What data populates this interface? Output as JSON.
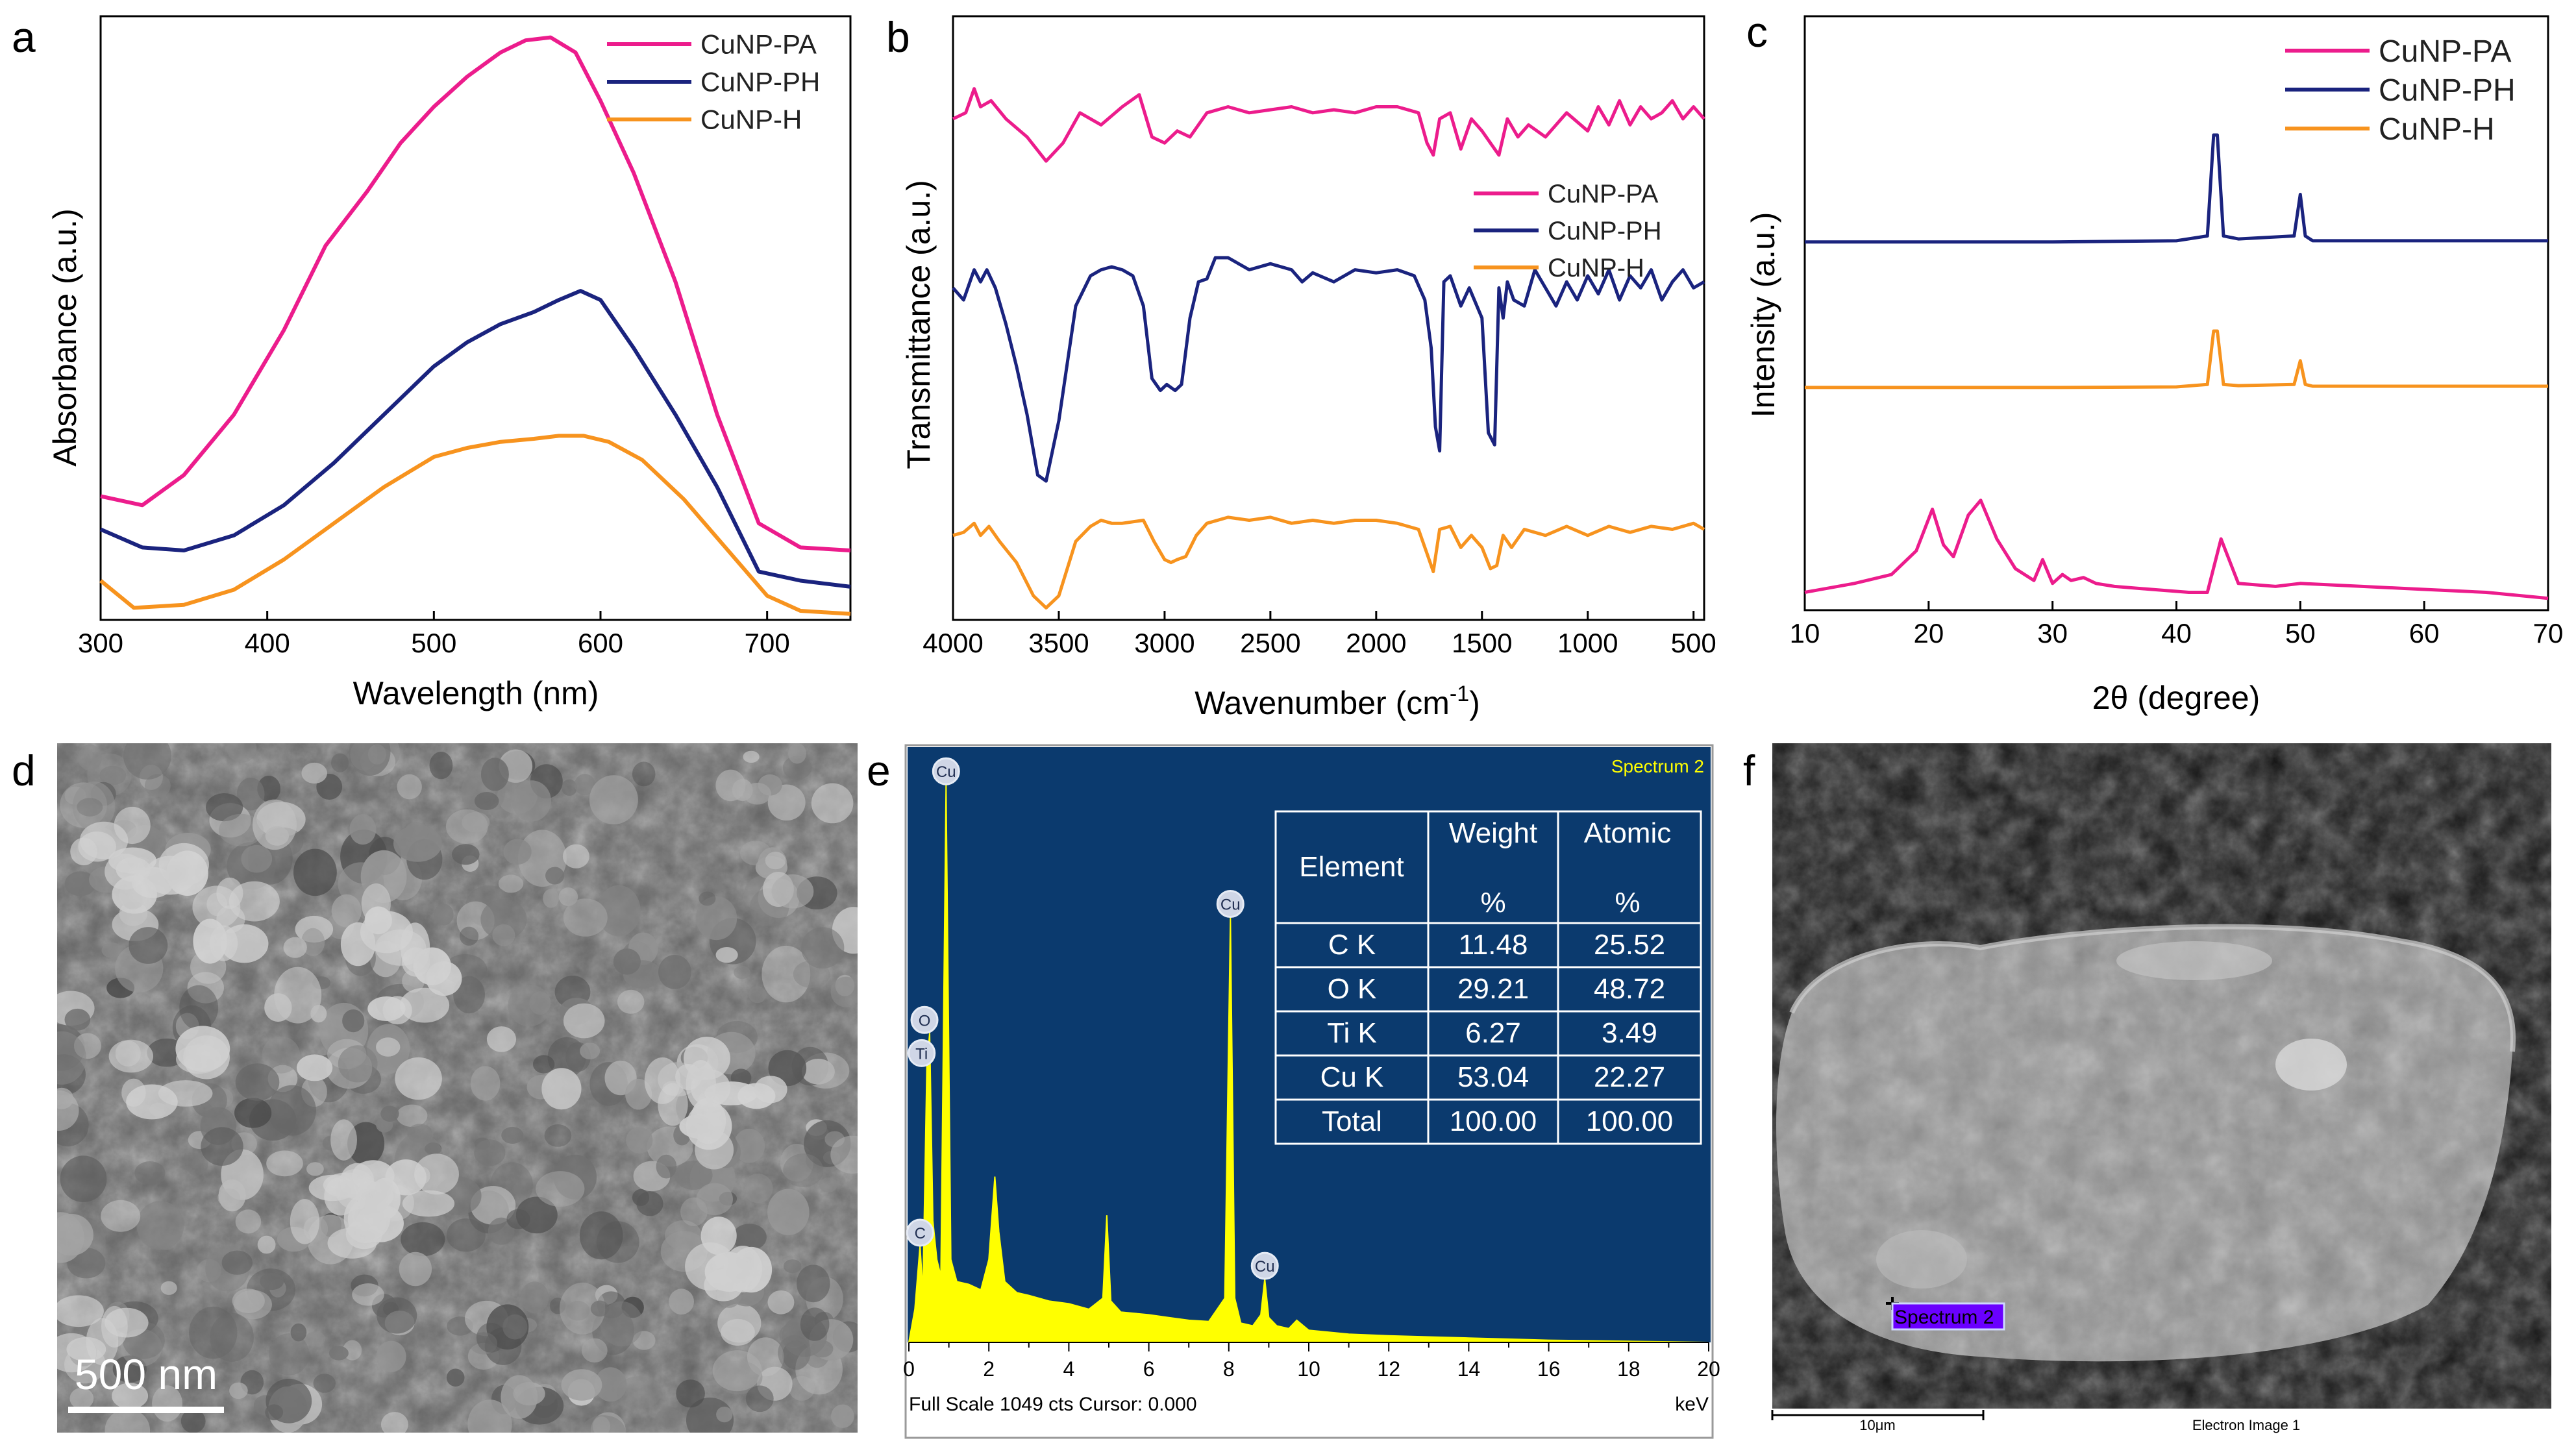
{
  "colors": {
    "pa": "#ec1c8c",
    "ph": "#1a237e",
    "h": "#f7931e",
    "eds_bg": "#0b3a6e",
    "eds_fill": "#ffff00",
    "axis": "#000000"
  },
  "chart_data": [
    {
      "panel": "a",
      "type": "line",
      "xlabel": "Wavelength (nm)",
      "ylabel": "Absorbance (a.u.)",
      "xlim": [
        300,
        750
      ],
      "ylim": [
        0,
        1.0
      ],
      "xticks": [
        "300",
        "400",
        "500",
        "600",
        "700"
      ],
      "xtick_values": [
        300,
        400,
        500,
        600,
        700
      ],
      "legend": [
        "CuNP-PA",
        "CuNP-PH",
        "CuNP-H"
      ],
      "series": [
        {
          "name": "CuNP-PA",
          "color": "pa",
          "x": [
            300,
            325,
            350,
            380,
            410,
            435,
            460,
            480,
            500,
            520,
            540,
            555,
            570,
            585,
            600,
            620,
            645,
            670,
            695,
            720,
            750
          ],
          "y": [
            0.205,
            0.19,
            0.24,
            0.34,
            0.48,
            0.62,
            0.71,
            0.79,
            0.85,
            0.9,
            0.94,
            0.96,
            0.965,
            0.94,
            0.86,
            0.74,
            0.56,
            0.34,
            0.16,
            0.12,
            0.115
          ]
        },
        {
          "name": "CuNP-PH",
          "color": "ph",
          "x": [
            300,
            325,
            350,
            380,
            410,
            440,
            470,
            500,
            520,
            540,
            560,
            575,
            588,
            600,
            620,
            645,
            670,
            695,
            720,
            750
          ],
          "y": [
            0.15,
            0.12,
            0.115,
            0.14,
            0.19,
            0.26,
            0.34,
            0.42,
            0.46,
            0.49,
            0.51,
            0.53,
            0.545,
            0.53,
            0.45,
            0.34,
            0.22,
            0.08,
            0.065,
            0.055
          ]
        },
        {
          "name": "CuNP-H",
          "color": "h",
          "x": [
            300,
            320,
            350,
            380,
            410,
            440,
            470,
            500,
            520,
            540,
            560,
            575,
            590,
            605,
            625,
            650,
            675,
            700,
            720,
            750
          ],
          "y": [
            0.065,
            0.02,
            0.025,
            0.05,
            0.1,
            0.16,
            0.22,
            0.27,
            0.285,
            0.295,
            0.3,
            0.305,
            0.305,
            0.295,
            0.265,
            0.2,
            0.12,
            0.04,
            0.015,
            0.01
          ]
        }
      ]
    },
    {
      "panel": "b",
      "type": "line",
      "xlabel": "Wavenumber (cm⁻¹)",
      "xlabel_main": "Wavenumber (cm",
      "xlabel_sup": "-1",
      "xlabel_end": ")",
      "ylabel": "Transmittance (a.u.)",
      "xlim": [
        4000,
        450
      ],
      "ylim": [
        0,
        1.0
      ],
      "xticks": [
        "4000",
        "3500",
        "3000",
        "2500",
        "2000",
        "1500",
        "1000",
        "500"
      ],
      "xtick_values": [
        4000,
        3500,
        3000,
        2500,
        2000,
        1500,
        1000,
        500
      ],
      "legend": [
        "CuNP-PA",
        "CuNP-PH",
        "CuNP-H"
      ],
      "series": [
        {
          "name": "CuNP-PA",
          "color": "pa",
          "x": [
            4000,
            3940,
            3900,
            3870,
            3820,
            3750,
            3650,
            3560,
            3480,
            3400,
            3300,
            3200,
            3120,
            3060,
            3000,
            2940,
            2880,
            2800,
            2700,
            2600,
            2500,
            2400,
            2300,
            2200,
            2100,
            2000,
            1900,
            1800,
            1760,
            1730,
            1700,
            1650,
            1600,
            1550,
            1500,
            1460,
            1420,
            1380,
            1330,
            1280,
            1200,
            1100,
            1000,
            950,
            900,
            850,
            800,
            750,
            700,
            650,
            600,
            550,
            500,
            450
          ],
          "y": [
            0.83,
            0.84,
            0.88,
            0.85,
            0.86,
            0.83,
            0.8,
            0.76,
            0.79,
            0.84,
            0.82,
            0.85,
            0.87,
            0.8,
            0.79,
            0.81,
            0.8,
            0.84,
            0.85,
            0.84,
            0.845,
            0.85,
            0.84,
            0.845,
            0.84,
            0.85,
            0.85,
            0.84,
            0.79,
            0.77,
            0.83,
            0.84,
            0.78,
            0.83,
            0.81,
            0.79,
            0.77,
            0.83,
            0.8,
            0.82,
            0.8,
            0.84,
            0.81,
            0.85,
            0.82,
            0.86,
            0.82,
            0.85,
            0.83,
            0.84,
            0.86,
            0.83,
            0.85,
            0.83
          ]
        },
        {
          "name": "CuNP-PH",
          "color": "ph",
          "x": [
            4000,
            3950,
            3900,
            3870,
            3840,
            3800,
            3750,
            3700,
            3650,
            3600,
            3560,
            3500,
            3420,
            3350,
            3300,
            3250,
            3200,
            3150,
            3100,
            3060,
            3020,
            2990,
            2950,
            2920,
            2880,
            2840,
            2800,
            2760,
            2700,
            2600,
            2500,
            2400,
            2350,
            2300,
            2200,
            2100,
            2000,
            1900,
            1820,
            1770,
            1740,
            1720,
            1700,
            1680,
            1650,
            1600,
            1560,
            1500,
            1470,
            1440,
            1420,
            1400,
            1380,
            1350,
            1300,
            1250,
            1200,
            1150,
            1100,
            1050,
            1000,
            950,
            900,
            850,
            800,
            750,
            700,
            650,
            600,
            550,
            500,
            450
          ],
          "y": [
            0.55,
            0.53,
            0.58,
            0.56,
            0.58,
            0.55,
            0.49,
            0.42,
            0.34,
            0.24,
            0.23,
            0.33,
            0.52,
            0.57,
            0.58,
            0.585,
            0.58,
            0.57,
            0.52,
            0.4,
            0.38,
            0.39,
            0.38,
            0.39,
            0.5,
            0.56,
            0.565,
            0.6,
            0.6,
            0.58,
            0.59,
            0.58,
            0.56,
            0.575,
            0.56,
            0.58,
            0.575,
            0.58,
            0.57,
            0.53,
            0.45,
            0.32,
            0.28,
            0.56,
            0.57,
            0.52,
            0.55,
            0.5,
            0.31,
            0.29,
            0.55,
            0.5,
            0.56,
            0.53,
            0.52,
            0.58,
            0.55,
            0.52,
            0.56,
            0.53,
            0.57,
            0.54,
            0.58,
            0.53,
            0.57,
            0.55,
            0.58,
            0.53,
            0.56,
            0.58,
            0.55,
            0.56
          ]
        },
        {
          "name": "CuNP-H",
          "color": "h",
          "x": [
            4000,
            3950,
            3900,
            3870,
            3830,
            3780,
            3700,
            3620,
            3560,
            3500,
            3420,
            3350,
            3300,
            3250,
            3200,
            3100,
            3050,
            3000,
            2970,
            2940,
            2900,
            2850,
            2800,
            2700,
            2600,
            2500,
            2400,
            2300,
            2200,
            2100,
            2000,
            1900,
            1800,
            1760,
            1730,
            1700,
            1650,
            1600,
            1550,
            1500,
            1460,
            1430,
            1400,
            1360,
            1300,
            1200,
            1100,
            1000,
            900,
            800,
            700,
            600,
            500,
            450
          ],
          "y": [
            0.14,
            0.145,
            0.16,
            0.14,
            0.155,
            0.13,
            0.095,
            0.04,
            0.02,
            0.04,
            0.13,
            0.155,
            0.165,
            0.16,
            0.16,
            0.165,
            0.13,
            0.1,
            0.095,
            0.1,
            0.105,
            0.14,
            0.16,
            0.17,
            0.165,
            0.17,
            0.16,
            0.165,
            0.16,
            0.165,
            0.165,
            0.16,
            0.15,
            0.11,
            0.08,
            0.15,
            0.155,
            0.12,
            0.14,
            0.12,
            0.085,
            0.09,
            0.14,
            0.12,
            0.15,
            0.14,
            0.155,
            0.14,
            0.155,
            0.145,
            0.155,
            0.15,
            0.16,
            0.15
          ]
        }
      ]
    },
    {
      "panel": "c",
      "type": "line",
      "xlabel": "2θ (degree)",
      "ylabel": "Intensity (a.u.)",
      "xlim": [
        10,
        70
      ],
      "ylim": [
        0,
        1.0
      ],
      "xticks": [
        "10",
        "20",
        "30",
        "40",
        "50",
        "60",
        "70"
      ],
      "xtick_values": [
        10,
        20,
        30,
        40,
        50,
        60,
        70
      ],
      "legend": [
        "CuNP-PA",
        "CuNP-PH",
        "CuNP-H"
      ],
      "series": [
        {
          "name": "CuNP-PH",
          "color": "ph",
          "x": [
            10,
            20,
            30,
            40,
            42.5,
            43,
            43.3,
            43.8,
            45,
            49.5,
            50,
            50.4,
            51,
            60,
            70
          ],
          "y": [
            0.62,
            0.62,
            0.62,
            0.622,
            0.63,
            0.8,
            0.8,
            0.63,
            0.625,
            0.63,
            0.7,
            0.63,
            0.622,
            0.622,
            0.622
          ]
        },
        {
          "name": "CuNP-H",
          "color": "h",
          "x": [
            10,
            20,
            30,
            40,
            42.5,
            43,
            43.3,
            43.8,
            45,
            49.5,
            50,
            50.4,
            51,
            60,
            70
          ],
          "y": [
            0.375,
            0.375,
            0.375,
            0.376,
            0.38,
            0.47,
            0.47,
            0.38,
            0.378,
            0.38,
            0.42,
            0.38,
            0.377,
            0.377,
            0.377
          ]
        },
        {
          "name": "CuNP-PA",
          "color": "pa",
          "x": [
            10,
            14,
            17,
            19,
            20.3,
            21.2,
            22,
            23.2,
            24.2,
            25.5,
            27,
            28.5,
            29.2,
            30,
            30.8,
            31.5,
            32.5,
            33.5,
            35,
            38,
            41,
            42.5,
            43.6,
            45,
            48,
            50,
            55,
            60,
            65,
            70
          ],
          "y": [
            0.03,
            0.045,
            0.06,
            0.1,
            0.17,
            0.11,
            0.09,
            0.16,
            0.185,
            0.12,
            0.07,
            0.05,
            0.085,
            0.045,
            0.06,
            0.05,
            0.055,
            0.045,
            0.04,
            0.035,
            0.03,
            0.03,
            0.12,
            0.045,
            0.04,
            0.045,
            0.04,
            0.035,
            0.03,
            0.02
          ]
        }
      ]
    },
    {
      "panel": "e",
      "type": "area",
      "title": "Spectrum 2",
      "xlabel": "keV",
      "footer": "Full Scale 1049 cts Cursor: 0.000",
      "xlim": [
        0,
        20
      ],
      "ylim": [
        0,
        1049
      ],
      "xticks": [
        "0",
        "2",
        "4",
        "6",
        "8",
        "10",
        "12",
        "14",
        "16",
        "18",
        "20"
      ],
      "xtick_values": [
        0,
        2,
        4,
        6,
        8,
        10,
        12,
        14,
        16,
        18,
        20
      ],
      "peaks": [
        {
          "label": "C",
          "kev": 0.28,
          "cts": 175
        },
        {
          "label": "O",
          "kev": 0.52,
          "cts": 560
        },
        {
          "label": "Ti",
          "kev": 0.45,
          "cts": 500
        },
        {
          "label": "Cu",
          "kev": 0.93,
          "cts": 1010
        },
        {
          "label": "Cu",
          "kev": 8.04,
          "cts": 770
        },
        {
          "label": "Cu",
          "kev": 8.9,
          "cts": 115
        }
      ],
      "spectrum": {
        "x": [
          0,
          0.15,
          0.28,
          0.35,
          0.45,
          0.52,
          0.6,
          0.7,
          0.8,
          0.93,
          1.05,
          1.2,
          1.5,
          1.8,
          2.0,
          2.15,
          2.25,
          2.4,
          2.7,
          3.0,
          3.5,
          4.0,
          4.5,
          4.85,
          4.95,
          5.05,
          5.3,
          6.0,
          6.5,
          7.0,
          7.5,
          7.9,
          8.04,
          8.15,
          8.3,
          8.6,
          8.8,
          8.9,
          9.0,
          9.2,
          9.5,
          9.7,
          10,
          11,
          12,
          13,
          14,
          15,
          16,
          17,
          18,
          19,
          20
        ],
        "y": [
          0,
          60,
          175,
          90,
          500,
          560,
          220,
          150,
          120,
          1010,
          150,
          110,
          105,
          95,
          150,
          300,
          200,
          110,
          90,
          85,
          75,
          70,
          60,
          80,
          230,
          75,
          55,
          50,
          45,
          40,
          38,
          80,
          770,
          80,
          35,
          30,
          50,
          115,
          45,
          30,
          25,
          40,
          22,
          15,
          12,
          10,
          8,
          6,
          4,
          3,
          2,
          1,
          0
        ]
      }
    }
  ],
  "panels": {
    "a": {
      "label": "a"
    },
    "b": {
      "label": "b"
    },
    "c": {
      "label": "c"
    },
    "d": {
      "label": "d",
      "scale_bar": "500 nm"
    },
    "e": {
      "label": "e",
      "table": {
        "head": [
          "Element",
          "Weight",
          "Atomic"
        ],
        "head_units": [
          "",
          "%",
          "%"
        ],
        "rows": [
          [
            "C K",
            "11.48",
            "25.52"
          ],
          [
            "O K",
            "29.21",
            "48.72"
          ],
          [
            "Ti K",
            "6.27",
            "3.49"
          ],
          [
            "Cu K",
            "53.04",
            "22.27"
          ],
          [
            "Total",
            "100.00",
            "100.00"
          ]
        ]
      }
    },
    "f": {
      "label": "f",
      "marker": "Spectrum 2",
      "scale_bar": "10μm",
      "caption": "Electron Image 1"
    }
  }
}
